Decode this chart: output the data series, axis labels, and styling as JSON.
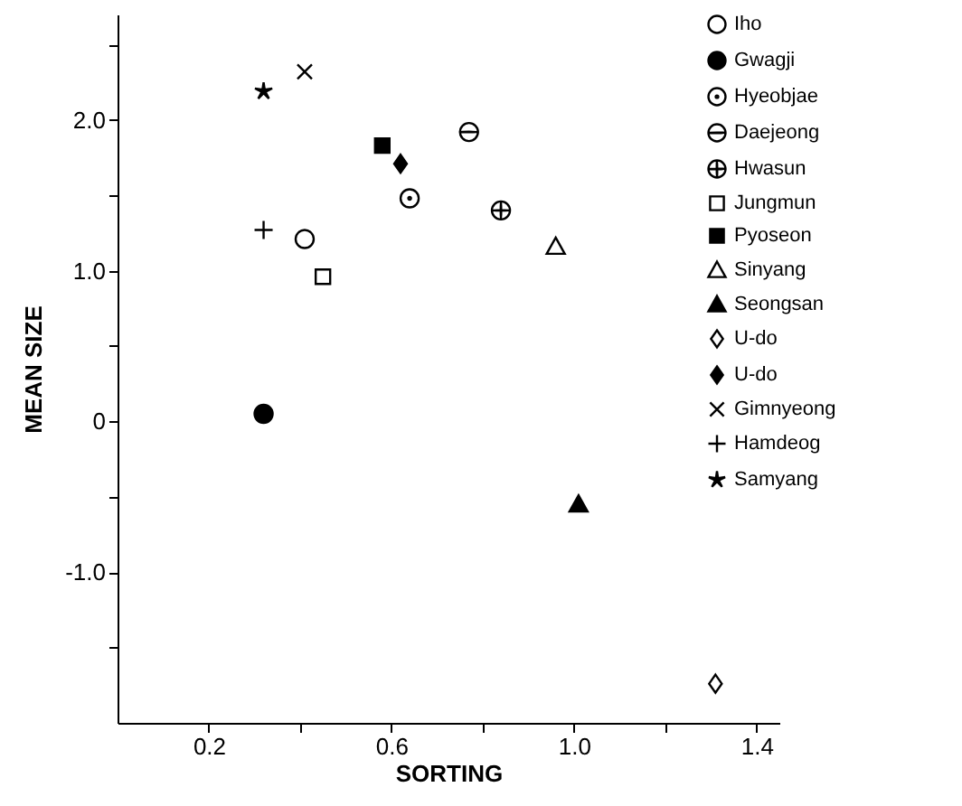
{
  "chart_data": {
    "type": "scatter",
    "xlabel": "SORTING",
    "ylabel": "MEAN SIZE",
    "xlim": [
      0,
      1.45
    ],
    "xticks": [
      0.2,
      {
        "value": 0.4,
        "label": null
      },
      0.6,
      {
        "value": 0.8,
        "label": null
      },
      {
        "value": 1.0,
        "label": "1.0"
      },
      {
        "value": 1.2,
        "label": null
      },
      1.4
    ],
    "ylim": [
      -2,
      2.7
    ],
    "yticks": [
      {
        "value": -1.5,
        "label": null
      },
      {
        "value": -1,
        "label": "-1.0"
      },
      {
        "value": -0.5,
        "label": null
      },
      0,
      {
        "value": 0.5,
        "label": null
      },
      {
        "value": 1,
        "label": "1.0"
      },
      {
        "value": 1.5,
        "label": null
      },
      {
        "value": 2,
        "label": "2.0"
      },
      {
        "value": 2.5,
        "label": null
      }
    ],
    "grid": false,
    "legend": "top right",
    "series": [
      {
        "name": "Iho",
        "color": "#000000",
        "marker": "circle-open",
        "x": [
          0.41
        ],
        "values": [
          1.21
        ]
      },
      {
        "name": "Gwagji",
        "color": "#000000",
        "marker": "circle-filled",
        "x": [
          0.32
        ],
        "values": [
          0.05
        ]
      },
      {
        "name": "Hyeobjae",
        "color": "#000000",
        "marker": "circle-dot",
        "x": [
          0.64
        ],
        "values": [
          1.48
        ]
      },
      {
        "name": "Daejeong",
        "color": "#000000",
        "marker": "circle-bar",
        "x": [
          0.77
        ],
        "values": [
          1.92
        ]
      },
      {
        "name": "Hwasun",
        "color": "#000000",
        "marker": "circle-plus",
        "x": [
          0.84
        ],
        "values": [
          1.4
        ]
      },
      {
        "name": "Jungmun",
        "color": "#000000",
        "marker": "square-open",
        "x": [
          0.45
        ],
        "values": [
          0.96
        ]
      },
      {
        "name": "Pyoseon",
        "color": "#000000",
        "marker": "square-filled",
        "x": [
          0.58
        ],
        "values": [
          1.83
        ]
      },
      {
        "name": "Sinyang",
        "color": "#000000",
        "marker": "triangle-open",
        "x": [
          0.96
        ],
        "values": [
          1.16
        ]
      },
      {
        "name": "Seongsan",
        "color": "#000000",
        "marker": "triangle-filled",
        "x": [
          1.01
        ],
        "values": [
          -0.55
        ]
      },
      {
        "name": "U-do",
        "color": "#000000",
        "marker": "diamond-open",
        "x": [
          1.31
        ],
        "values": [
          -1.74
        ]
      },
      {
        "name": "U-do",
        "color": "#000000",
        "marker": "diamond-filled",
        "x": [
          0.62
        ],
        "values": [
          1.71
        ]
      },
      {
        "name": "Gimnyeong",
        "color": "#000000",
        "marker": "x",
        "x": [
          0.41
        ],
        "values": [
          2.32
        ]
      },
      {
        "name": "Hamdeog",
        "color": "#000000",
        "marker": "cross",
        "x": [
          0.32
        ],
        "values": [
          1.27
        ]
      },
      {
        "name": "Samyang",
        "color": "#000000",
        "marker": "star",
        "x": [
          0.32
        ],
        "values": [
          2.19
        ]
      }
    ]
  }
}
